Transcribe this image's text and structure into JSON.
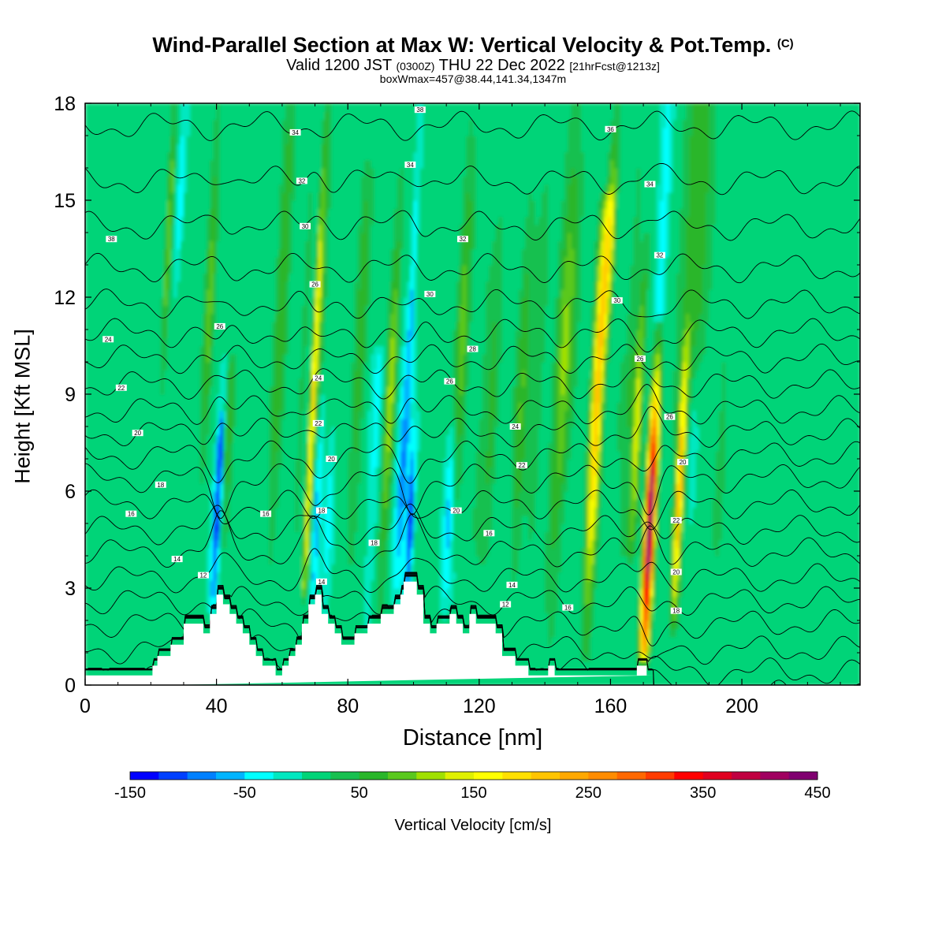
{
  "title": {
    "main": "Wind-Parallel Section at Max W: Vertical Velocity & Pot.Temp.",
    "copyright": "(C)",
    "valid_prefix": "Valid 1200 JST",
    "valid_zulu": "(0300Z)",
    "valid_date": "THU 22 Dec 2022",
    "forecast": "[21hrFcst@1213z]",
    "box_info": "boxWmax=457@38.44,141.34,1347m"
  },
  "chart_data": {
    "type": "heatmap",
    "xlabel": "Distance [nm]",
    "ylabel": "Height [Kft MSL]",
    "xlim": [
      0,
      236
    ],
    "ylim": [
      0,
      18
    ],
    "x_ticks": [
      0,
      40,
      80,
      120,
      160,
      200
    ],
    "y_ticks": [
      0,
      3,
      6,
      9,
      12,
      15,
      18
    ],
    "colorbar": {
      "label": "Vertical Velocity [cm/s]",
      "tick_labels": [
        "-150",
        "-50",
        "50",
        "150",
        "250",
        "350",
        "450"
      ],
      "levels": [
        -150,
        -125,
        -100,
        -75,
        -50,
        -25,
        0,
        25,
        50,
        75,
        100,
        125,
        150,
        175,
        200,
        225,
        250,
        275,
        300,
        325,
        350,
        375,
        400,
        425,
        450
      ],
      "colors": [
        "#0000ff",
        "#0040ff",
        "#0080ff",
        "#00b4ff",
        "#00ffff",
        "#00e8c0",
        "#00d478",
        "#18c050",
        "#2ab62a",
        "#5ac81e",
        "#a0e000",
        "#e0f000",
        "#ffff00",
        "#ffe000",
        "#ffc400",
        "#ffa800",
        "#ff8c00",
        "#ff6800",
        "#ff3c00",
        "#ff0000",
        "#e00020",
        "#c00040",
        "#a00060",
        "#800070",
        "#501080"
      ]
    },
    "background_w": 5,
    "w_features": [
      {
        "x": 25.5,
        "y": 14,
        "w": 95,
        "width": 1.0,
        "z0": 9,
        "z1": 18
      },
      {
        "x": 27,
        "y": 9,
        "w": 12,
        "width": 2.5,
        "z0": 3,
        "z1": 16
      },
      {
        "x": 29,
        "y": 15,
        "w": -60,
        "width": 1.0,
        "z0": 12,
        "z1": 18
      },
      {
        "x": 38,
        "y": 12,
        "w": 85,
        "width": 1.6,
        "z0": 6,
        "z1": 18
      },
      {
        "x": 40,
        "y": 5,
        "w": -80,
        "width": 1.2,
        "z0": 2.6,
        "z1": 10
      },
      {
        "x": 41,
        "y": 7,
        "w": -100,
        "width": 0.7,
        "z0": 3,
        "z1": 8
      },
      {
        "x": 44,
        "y": 8,
        "w": 60,
        "width": 1.5,
        "z0": 3,
        "z1": 10
      },
      {
        "x": 60,
        "y": 12,
        "w": 70,
        "width": 2.0,
        "z0": 2,
        "z1": 18
      },
      {
        "x": 66.5,
        "y": 10,
        "w": 40,
        "width": 1.0,
        "z0": 3,
        "z1": 18
      },
      {
        "x": 69,
        "y": 8,
        "w": 160,
        "width": 0.9,
        "z0": 3,
        "z1": 18
      },
      {
        "x": 70.5,
        "y": 5,
        "w": -80,
        "width": 1.0,
        "z0": 3,
        "z1": 9
      },
      {
        "x": 72,
        "y": 12,
        "w": 60,
        "width": 1.5,
        "z0": 6,
        "z1": 18
      },
      {
        "x": 74,
        "y": 5,
        "w": -45,
        "width": 1.2,
        "z0": 2,
        "z1": 8
      },
      {
        "x": 84,
        "y": 11,
        "w": 60,
        "width": 2.0,
        "z0": 2,
        "z1": 16
      },
      {
        "x": 89,
        "y": 9,
        "w": -40,
        "width": 1.5,
        "z0": 2,
        "z1": 10
      },
      {
        "x": 93,
        "y": 9,
        "w": 105,
        "width": 1.6,
        "z0": 2,
        "z1": 16
      },
      {
        "x": 97,
        "y": 7,
        "w": -90,
        "width": 1.8,
        "z0": 3,
        "z1": 12
      },
      {
        "x": 99,
        "y": 5,
        "w": -150,
        "width": 0.9,
        "z0": 3,
        "z1": 8
      },
      {
        "x": 100,
        "y": 13,
        "w": -50,
        "width": 0.8,
        "z0": 10,
        "z1": 18
      },
      {
        "x": 111,
        "y": 5.5,
        "w": -75,
        "width": 1.5,
        "z0": 2.5,
        "z1": 9
      },
      {
        "x": 115,
        "y": 11,
        "w": 85,
        "width": 2.0,
        "z0": 4,
        "z1": 18
      },
      {
        "x": 120,
        "y": 8,
        "w": 20,
        "width": 2.0,
        "z0": 2,
        "z1": 18
      },
      {
        "x": 124,
        "y": 9,
        "w": 55,
        "width": 2.0,
        "z0": 4,
        "z1": 16
      },
      {
        "x": 133,
        "y": 9,
        "w": 70,
        "width": 2.2,
        "z0": 3,
        "z1": 16
      },
      {
        "x": 138,
        "y": 10,
        "w": 40,
        "width": 2.0,
        "z0": 4,
        "z1": 18
      },
      {
        "x": 145,
        "y": 9,
        "w": 70,
        "width": 2.5,
        "z0": 1,
        "z1": 18
      },
      {
        "x": 148,
        "y": 12,
        "w": 45,
        "width": 3.0,
        "z0": 6,
        "z1": 18
      },
      {
        "x": 156,
        "y": 9,
        "w": 220,
        "width": 1.8,
        "z0": 1,
        "z1": 15
      },
      {
        "x": 160,
        "y": 14,
        "w": 125,
        "width": 1.5,
        "z0": 10,
        "z1": 18
      },
      {
        "x": 162,
        "y": 7,
        "w": 20,
        "width": 1.5,
        "z0": 2,
        "z1": 18
      },
      {
        "x": 166,
        "y": 10,
        "w": 40,
        "width": 1.2,
        "z0": 1,
        "z1": 18
      },
      {
        "x": 168,
        "y": 8,
        "w": 130,
        "width": 1.5,
        "z0": 4,
        "z1": 14
      },
      {
        "x": 172,
        "y": 5,
        "w": 450,
        "width": 1.5,
        "z0": 1,
        "z1": 11
      },
      {
        "x": 176,
        "y": 14,
        "w": -50,
        "width": 1.5,
        "z0": 5,
        "z1": 18
      },
      {
        "x": 181,
        "y": 6,
        "w": 200,
        "width": 1.1,
        "z0": 2,
        "z1": 11
      },
      {
        "x": 185,
        "y": 7.5,
        "w": -55,
        "width": 2.0,
        "z0": 4,
        "z1": 11
      },
      {
        "x": 186,
        "y": 14,
        "w": 70,
        "width": 4.5,
        "z0": 2,
        "z1": 18
      },
      {
        "x": 194,
        "y": 8,
        "w": 25,
        "width": 3.0,
        "z0": 2,
        "z1": 16
      }
    ],
    "terrain": {
      "x": [
        0,
        20.5,
        20.5,
        22,
        22,
        26,
        26,
        30,
        30,
        36,
        36,
        38,
        38,
        40,
        40,
        42,
        42,
        44,
        44,
        46,
        46,
        48,
        48,
        50,
        50,
        52,
        52,
        54,
        54,
        58,
        58,
        60,
        60,
        62,
        62,
        64,
        64,
        66,
        66,
        68,
        68,
        70,
        70,
        72,
        72,
        74,
        74,
        76,
        76,
        78,
        78,
        82,
        82,
        86,
        86,
        90,
        90,
        94,
        94,
        96,
        96,
        97,
        97,
        101,
        101,
        103,
        103,
        105,
        105,
        107,
        107,
        111,
        111,
        113,
        113,
        115,
        115,
        117,
        117,
        119,
        119,
        125,
        125,
        127,
        127,
        131,
        131,
        133,
        133,
        135,
        135,
        139,
        139,
        141,
        141,
        143,
        143,
        146,
        146,
        150,
        150,
        168,
        168,
        171,
        171,
        173,
        173,
        236
      ],
      "y": [
        0.3,
        0.3,
        0.6,
        0.6,
        0.9,
        0.9,
        1.25,
        1.25,
        1.9,
        1.9,
        1.6,
        1.6,
        2.2,
        2.2,
        2.8,
        2.8,
        2.5,
        2.5,
        2.2,
        2.2,
        1.9,
        1.9,
        1.6,
        1.6,
        1.25,
        1.25,
        0.9,
        0.9,
        0.6,
        0.6,
        0.3,
        0.3,
        0.6,
        0.6,
        0.9,
        0.9,
        1.25,
        1.25,
        1.9,
        1.9,
        2.5,
        2.5,
        2.8,
        2.8,
        2.2,
        2.2,
        1.9,
        1.9,
        1.6,
        1.6,
        1.25,
        1.25,
        1.6,
        1.6,
        1.9,
        1.9,
        2.2,
        2.2,
        2.5,
        2.5,
        2.8,
        2.8,
        3.2,
        3.2,
        2.8,
        2.8,
        1.9,
        1.9,
        1.6,
        1.6,
        1.9,
        1.9,
        2.2,
        2.2,
        1.9,
        1.9,
        1.6,
        1.6,
        2.2,
        2.2,
        1.9,
        1.9,
        1.6,
        1.6,
        0.9,
        0.9,
        0.6,
        0.6,
        0.6,
        0.6,
        0.3,
        0.3,
        0.3,
        0.3,
        0.6,
        0.6,
        0.3,
        0.3,
        0.3,
        0.3,
        0.3,
        0.3,
        0.6,
        0.6,
        0.3,
        0.3,
        0.3
      ]
    },
    "theta_contours": {
      "levels": [
        -6,
        -4,
        -2,
        0,
        2,
        4,
        6,
        8,
        10,
        12,
        14,
        16,
        18,
        20,
        22,
        24,
        26,
        28,
        30,
        32,
        34,
        36,
        38
      ],
      "base_height": [
        -1.5,
        -0.9,
        -0.3,
        0.4,
        1.1,
        1.9,
        2.6,
        3.3,
        4.1,
        4.8,
        5.6,
        6.4,
        7.1,
        7.8,
        8.5,
        9.3,
        10.1,
        10.9,
        11.8,
        12.9,
        14.2,
        15.6,
        17.3
      ],
      "labels": [
        {
          "text": "38",
          "x": 102,
          "y": 17.8
        },
        {
          "text": "34",
          "x": 64,
          "y": 17.1
        },
        {
          "text": "36",
          "x": 160,
          "y": 17.2
        },
        {
          "text": "34",
          "x": 99,
          "y": 16.1
        },
        {
          "text": "32",
          "x": 66,
          "y": 15.6
        },
        {
          "text": "34",
          "x": 172,
          "y": 15.5
        },
        {
          "text": "30",
          "x": 67,
          "y": 14.2
        },
        {
          "text": "38",
          "x": 8,
          "y": 13.8
        },
        {
          "text": "32",
          "x": 115,
          "y": 13.8
        },
        {
          "text": "32",
          "x": 175,
          "y": 13.3
        },
        {
          "text": "26",
          "x": 70,
          "y": 12.4
        },
        {
          "text": "30",
          "x": 105,
          "y": 12.1
        },
        {
          "text": "30",
          "x": 162,
          "y": 11.9
        },
        {
          "text": "26",
          "x": 41,
          "y": 11.1
        },
        {
          "text": "24",
          "x": 7,
          "y": 10.7
        },
        {
          "text": "28",
          "x": 118,
          "y": 10.4
        },
        {
          "text": "26",
          "x": 169,
          "y": 10.1
        },
        {
          "text": "24",
          "x": 71,
          "y": 9.5
        },
        {
          "text": "26",
          "x": 111,
          "y": 9.4
        },
        {
          "text": "22",
          "x": 11,
          "y": 9.2
        },
        {
          "text": "22",
          "x": 71,
          "y": 8.1
        },
        {
          "text": "24",
          "x": 131,
          "y": 8.0
        },
        {
          "text": "26",
          "x": 178,
          "y": 8.3
        },
        {
          "text": "20",
          "x": 16,
          "y": 7.8
        },
        {
          "text": "20",
          "x": 75,
          "y": 7.0
        },
        {
          "text": "22",
          "x": 133,
          "y": 6.8
        },
        {
          "text": "20",
          "x": 182,
          "y": 6.9
        },
        {
          "text": "18",
          "x": 23,
          "y": 6.2
        },
        {
          "text": "18",
          "x": 72,
          "y": 5.4
        },
        {
          "text": "20",
          "x": 113,
          "y": 5.4
        },
        {
          "text": "16",
          "x": 14,
          "y": 5.3
        },
        {
          "text": "16",
          "x": 55,
          "y": 5.3
        },
        {
          "text": "22",
          "x": 180,
          "y": 5.1
        },
        {
          "text": "16",
          "x": 123,
          "y": 4.7
        },
        {
          "text": "18",
          "x": 88,
          "y": 4.4
        },
        {
          "text": "14",
          "x": 28,
          "y": 3.9
        },
        {
          "text": "12",
          "x": 36,
          "y": 3.4
        },
        {
          "text": "20",
          "x": 180,
          "y": 3.5
        },
        {
          "text": "14",
          "x": 72,
          "y": 3.2
        },
        {
          "text": "14",
          "x": 130,
          "y": 3.1
        },
        {
          "text": "12",
          "x": 128,
          "y": 2.5
        },
        {
          "text": "16",
          "x": 147,
          "y": 2.4
        },
        {
          "text": "18",
          "x": 180,
          "y": 2.3
        }
      ]
    }
  }
}
